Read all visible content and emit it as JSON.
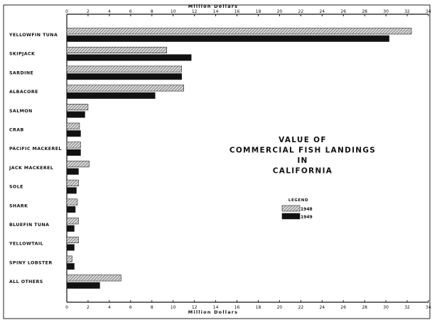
{
  "chart_data": {
    "type": "bar",
    "orientation": "horizontal",
    "title_lines": [
      "VALUE OF",
      "COMMERCIAL FISH LANDINGS",
      "IN",
      "CALIFORNIA"
    ],
    "xlabel": "Million   Dollars",
    "xlim": [
      0,
      34
    ],
    "xticks": [
      "0",
      "2",
      "4",
      "6",
      "8",
      "10",
      "12",
      "14",
      "16",
      "18",
      "20",
      "22",
      "24",
      "26",
      "28",
      "30",
      "32",
      "34"
    ],
    "categories": [
      "YELLOWFIN TUNA",
      "SKIPJACK",
      "SARDINE",
      "ALBACORE",
      "SALMON",
      "CRAB",
      "PACIFIC MACKEREL",
      "JACK MACKEREL",
      "SOLE",
      "SHARK",
      "BLUEFIN TUNA",
      "YELLOWTAIL",
      "SPINY LOBSTER",
      "ALL OTHERS"
    ],
    "series": [
      {
        "name": "1948",
        "pattern": "hatched",
        "values": [
          32.4,
          9.4,
          10.8,
          11.0,
          2.0,
          1.2,
          1.3,
          2.1,
          1.1,
          1.0,
          1.1,
          1.1,
          0.5,
          5.1
        ]
      },
      {
        "name": "1949",
        "pattern": "solid",
        "color": "#111111",
        "values": [
          30.3,
          11.7,
          10.8,
          8.3,
          1.7,
          1.3,
          1.3,
          1.1,
          0.9,
          0.8,
          0.7,
          0.7,
          0.7,
          3.1
        ]
      }
    ],
    "legend_title": "LEGEND",
    "legend_position": "center-right",
    "grid": false
  }
}
